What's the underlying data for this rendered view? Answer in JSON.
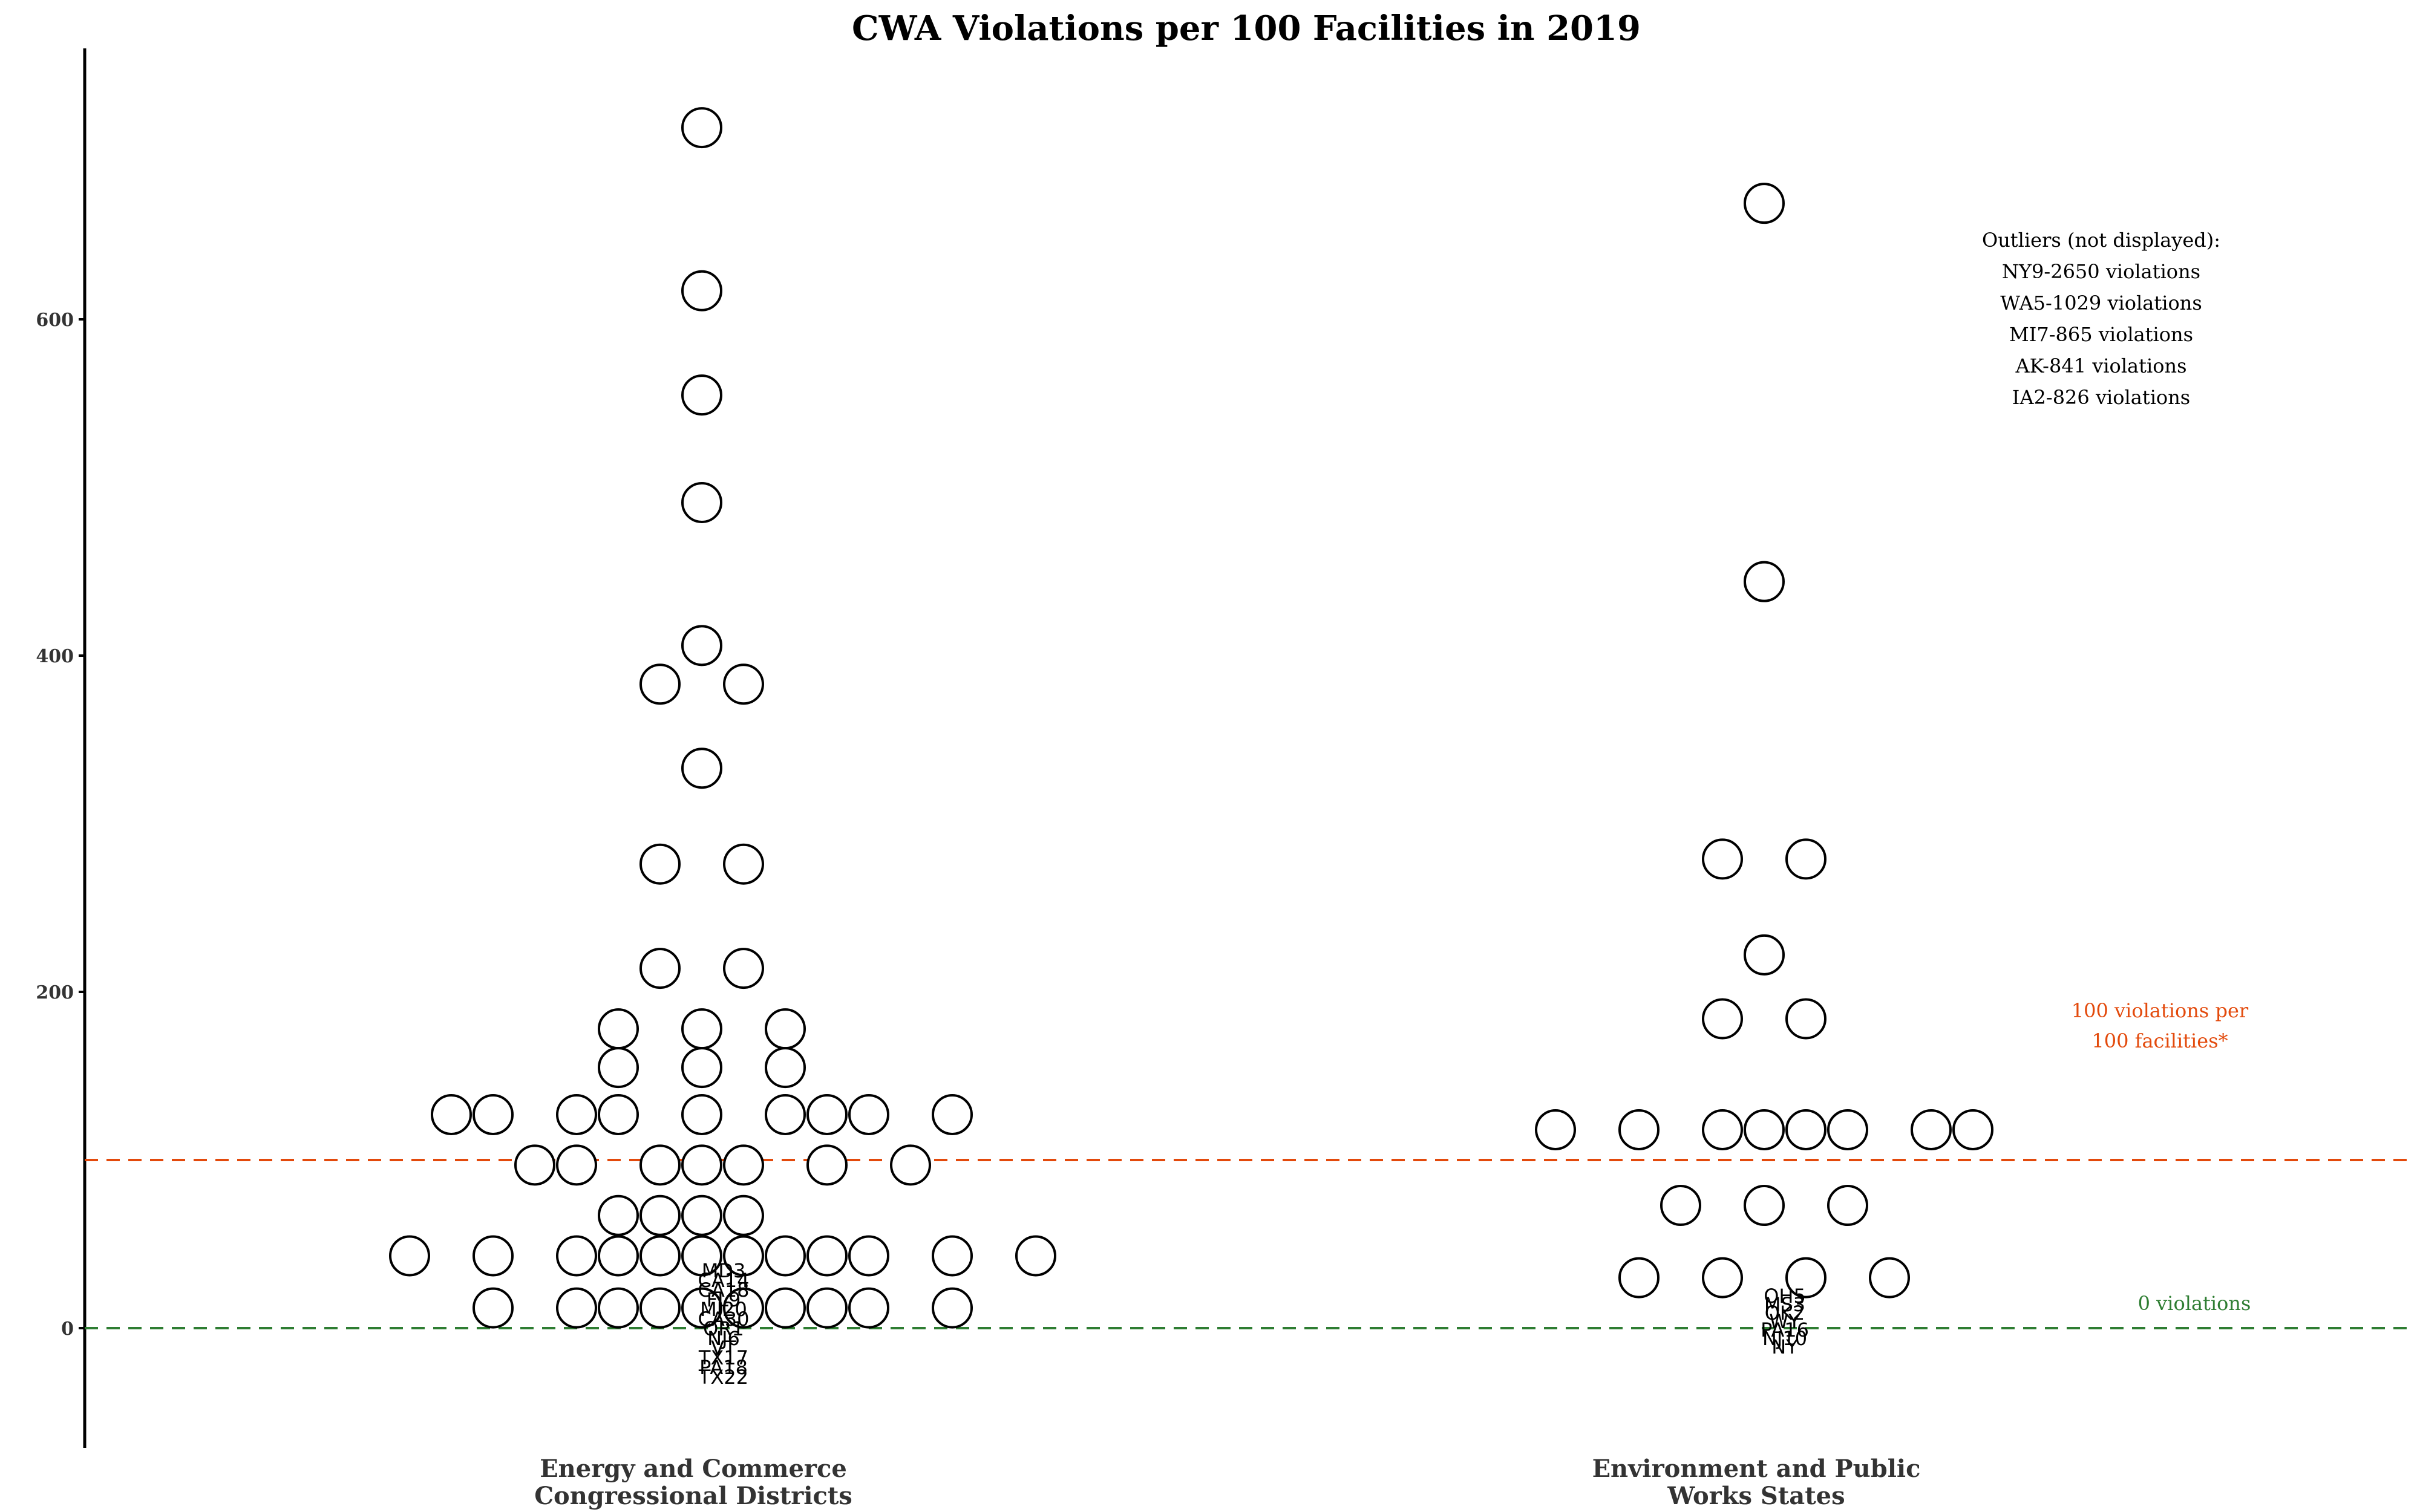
{
  "chart_data": {
    "type": "scatter",
    "title": "CWA Violations per 100 Facilities in 2019",
    "xlabel": "",
    "ylabel": "",
    "ylim": [
      -72,
      760
    ],
    "y_ticks": [
      0,
      200,
      400,
      600
    ],
    "y_tick_labels": [
      "0",
      "200",
      "400",
      "600"
    ],
    "grid": false,
    "groups": [
      {
        "label_line1": "Energy and Commerce",
        "label_line2": "Congressional Districts",
        "columns": [
          {
            "offset": 0,
            "values": [
              714,
              617,
              555,
              491,
              406,
              333,
              178,
              155,
              127,
              97,
              67,
              43,
              12
            ]
          },
          {
            "offset": -1,
            "values": [
              383,
              276,
              214,
              97,
              67,
              43,
              12
            ]
          },
          {
            "offset": 1,
            "values": [
              383,
              276,
              214,
              97,
              67,
              43,
              12
            ]
          },
          {
            "offset": -2,
            "values": [
              178,
              155,
              127,
              67,
              43,
              12
            ]
          },
          {
            "offset": 2,
            "values": [
              178,
              155,
              127,
              43,
              12
            ]
          },
          {
            "offset": -3,
            "values": [
              127,
              97,
              43,
              12
            ]
          },
          {
            "offset": 3,
            "values": [
              127,
              97,
              43,
              12
            ]
          },
          {
            "offset": -4,
            "values": [
              97
            ]
          },
          {
            "offset": 4,
            "values": [
              127,
              43,
              12
            ]
          },
          {
            "offset": -5,
            "values": [
              127,
              43,
              12
            ]
          },
          {
            "offset": 5,
            "values": [
              97
            ]
          },
          {
            "offset": -6,
            "values": [
              127
            ]
          },
          {
            "offset": 6,
            "values": [
              127,
              43,
              12
            ]
          },
          {
            "offset": -7,
            "values": [
              43
            ]
          },
          {
            "offset": 8,
            "values": [
              43
            ]
          }
        ],
        "labels": [
          "MD3",
          "CA14",
          "CA18",
          "FL9",
          "MI20",
          "CA30",
          "OR1",
          "NJ6",
          "VT",
          "TX17",
          "PA18",
          "TX22"
        ]
      },
      {
        "label_line1": "Environment and Public",
        "label_line2": "Works States",
        "columns": [
          {
            "offset": 0,
            "values": [
              669,
              444,
              222,
              118,
              73
            ]
          },
          {
            "offset": -1,
            "values": [
              279,
              184,
              118,
              30
            ]
          },
          {
            "offset": 1,
            "values": [
              279,
              184,
              118,
              30
            ]
          },
          {
            "offset": -2,
            "values": [
              73
            ]
          },
          {
            "offset": 2,
            "values": [
              118,
              73
            ]
          },
          {
            "offset": -3,
            "values": [
              118,
              30
            ]
          },
          {
            "offset": 3,
            "values": [
              30
            ]
          },
          {
            "offset": -5,
            "values": [
              118
            ]
          },
          {
            "offset": 4,
            "values": [
              118
            ]
          },
          {
            "offset": 5,
            "values": [
              118
            ]
          }
        ],
        "labels": [
          "OH5",
          "MS3",
          "OK2",
          "WY",
          "PA16",
          "NJ10",
          "NY"
        ]
      }
    ],
    "reference_lines": [
      {
        "value": 100,
        "color": "#e34a0c",
        "label_line1": "100 violations per",
        "label_line2": "100 facilities*"
      },
      {
        "value": 0,
        "color": "#2e7d32",
        "label_line1": "0 violations",
        "label_line2": ""
      }
    ],
    "outliers": {
      "heading": "Outliers (not displayed):",
      "items": [
        "NY9-2650 violations",
        "WA5-1029 violations",
        "MI7-865 violations",
        "AK-841 violations",
        "IA2-826 violations"
      ]
    }
  }
}
